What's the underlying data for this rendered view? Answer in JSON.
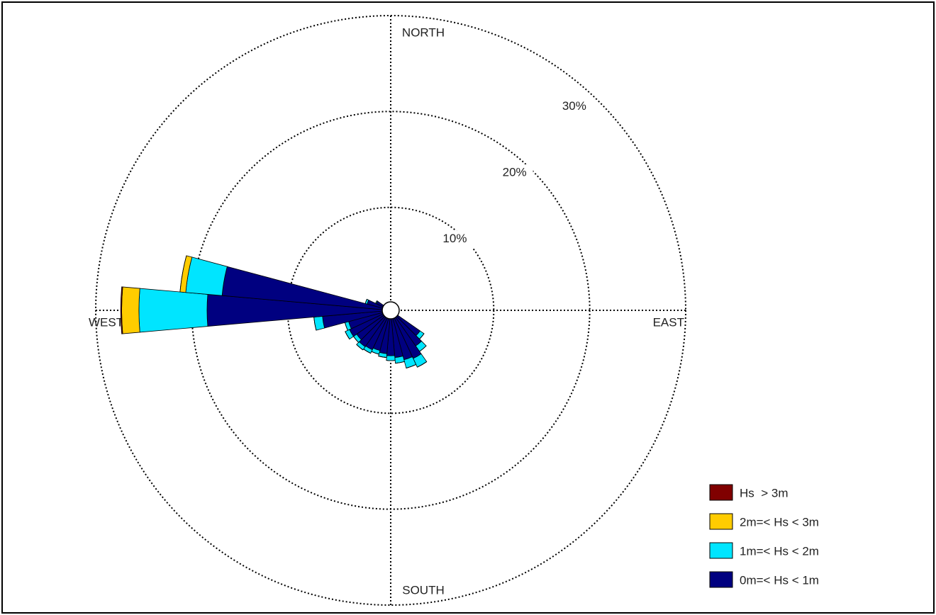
{
  "chart_data": {
    "type": "polar-stacked-bar",
    "x": [
      130,
      140,
      150,
      160,
      170,
      180,
      190,
      200,
      210,
      220,
      230,
      240,
      250,
      260,
      270,
      280,
      290,
      300
    ],
    "series": [
      {
        "name": "0m=< Hs < 1m",
        "color": "#000080",
        "values": [
          3.0,
          3.8,
          4.8,
          4.6,
          4.2,
          4.0,
          3.8,
          3.6,
          3.8,
          3.9,
          3.6,
          4.0,
          3.8,
          6.4,
          18.4,
          16.9,
          1.8,
          0.9
        ]
      },
      {
        "name": "1m=< Hs < 2m",
        "color": "#00e5ff",
        "values": [
          0.5,
          0.7,
          1.0,
          0.9,
          0.6,
          0.5,
          0.4,
          0.4,
          0.4,
          0.4,
          0.4,
          0.5,
          0.4,
          0.9,
          7.1,
          3.8,
          0.2,
          0.1
        ]
      },
      {
        "name": "2m=< Hs < 3m",
        "color": "#ffcc00",
        "values": [
          0,
          0,
          0,
          0,
          0,
          0,
          0,
          0,
          0,
          0,
          0,
          0,
          0,
          0,
          1.8,
          0.6,
          0,
          0
        ]
      },
      {
        "name": "Hs  > 3m",
        "color": "#800000",
        "values": [
          0,
          0,
          0,
          0,
          0,
          0,
          0,
          0,
          0,
          0,
          0,
          0,
          0,
          0,
          0.1,
          0,
          0,
          0
        ]
      }
    ],
    "rlim": [
      0,
      30
    ],
    "rticks": [
      {
        "value": 10,
        "label": "10%"
      },
      {
        "value": 20,
        "label": "20%"
      },
      {
        "value": 30,
        "label": "30%"
      }
    ],
    "directions": {
      "north": "NORTH",
      "east": "EAST",
      "south": "SOUTH",
      "west": "WEST"
    },
    "sector_width": 10,
    "legend": "lower right",
    "grid": true
  }
}
